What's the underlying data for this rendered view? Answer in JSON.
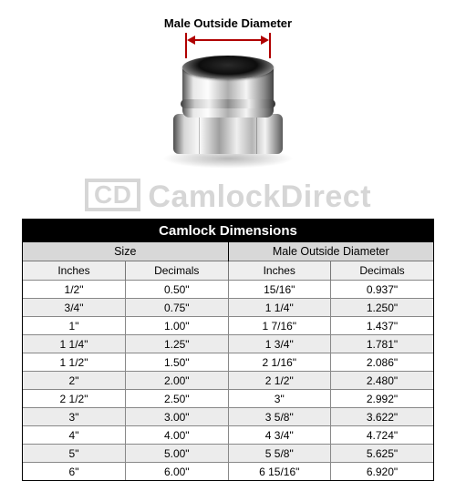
{
  "diagram": {
    "label": "Male Outside Diameter",
    "arrow_color": "#b00000"
  },
  "watermark": {
    "badge": "CD",
    "text": "CamlockDirect",
    "color": "#d6d6d6"
  },
  "table": {
    "title": "Camlock Dimensions",
    "group_headers": [
      "Size",
      "Male Outside Diameter"
    ],
    "column_headers": [
      "Inches",
      "Decimals",
      "Inches",
      "Decimals"
    ],
    "title_bg": "#000000",
    "title_fg": "#ffffff",
    "group_bg": "#d8d8d8",
    "head_bg": "#eeeeee",
    "row_alt_bg": "#ececec",
    "border_color": "#000000",
    "rows": [
      [
        "1/2\"",
        "0.50\"",
        "15/16\"",
        "0.937\""
      ],
      [
        "3/4\"",
        "0.75\"",
        "1 1/4\"",
        "1.250\""
      ],
      [
        "1\"",
        "1.00\"",
        "1 7/16\"",
        "1.437\""
      ],
      [
        "1 1/4\"",
        "1.25\"",
        "1 3/4\"",
        "1.781\""
      ],
      [
        "1 1/2\"",
        "1.50\"",
        "2 1/16\"",
        "2.086\""
      ],
      [
        "2\"",
        "2.00\"",
        "2 1/2\"",
        "2.480\""
      ],
      [
        "2 1/2\"",
        "2.50\"",
        "3\"",
        "2.992\""
      ],
      [
        "3\"",
        "3.00\"",
        "3 5/8\"",
        "3.622\""
      ],
      [
        "4\"",
        "4.00\"",
        "4 3/4\"",
        "4.724\""
      ],
      [
        "5\"",
        "5.00\"",
        "5 5/8\"",
        "5.625\""
      ],
      [
        "6\"",
        "6.00\"",
        "6 15/16\"",
        "6.920\""
      ]
    ]
  }
}
